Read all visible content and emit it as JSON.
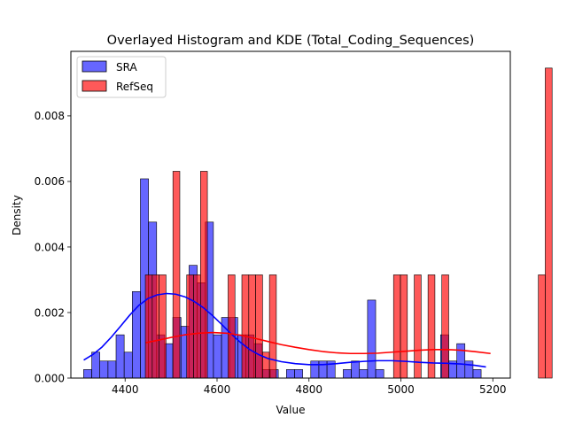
{
  "chart_data": {
    "type": "bar",
    "title": "Overlayed Histogram and KDE (Total_Coding_Sequences)",
    "xlabel": "Value",
    "ylabel": "Density",
    "xlim": [
      4282,
      5238
    ],
    "ylim": [
      0,
      0.00997
    ],
    "xticks": [
      4400,
      4600,
      4800,
      5000,
      5200
    ],
    "xtick_labels": [
      "4400",
      "4600",
      "4800",
      "5000",
      "5200"
    ],
    "yticks": [
      0,
      0.002,
      0.004,
      0.006,
      0.008
    ],
    "ytick_labels": [
      "0.000",
      "0.002",
      "0.004",
      "0.006",
      "0.008"
    ],
    "legend_position": "upper-left",
    "grid": false,
    "series": [
      {
        "name": "SRA",
        "color": "#0000ff",
        "opacity": 0.6,
        "bin_width": 17.65,
        "bin_start": 4309.7,
        "values": [
          0.00026,
          0.00079,
          0.00052,
          0.00052,
          0.00132,
          0.00079,
          0.00264,
          0.00608,
          0.00476,
          0.00132,
          0.00105,
          0.00185,
          0.00158,
          0.00344,
          0.00291,
          0.00476,
          0.00132,
          0.00185,
          0.00185,
          0.00132,
          0.00132,
          0.00105,
          0.00026,
          0.00026,
          0,
          0.00026,
          0.00026,
          0,
          0.00052,
          0.00052,
          0.00052,
          0,
          0.00026,
          0.00052,
          0.00026,
          0.00238,
          0.00026,
          0,
          0,
          0,
          0,
          0,
          0,
          0,
          0.00132,
          0.00052,
          0.00105,
          0.00052,
          0.00026
        ]
      },
      {
        "name": "RefSeq",
        "color": "#ff0000",
        "opacity": 0.65,
        "bin_width": 15.0,
        "bin_start": 4444.0,
        "values": [
          0.00315,
          0.00315,
          0.00315,
          0,
          0.00631,
          0,
          0.00315,
          0.00315,
          0.00631,
          0,
          0,
          0,
          0.00315,
          0,
          0.00315,
          0.00315,
          0.00315,
          0.00079,
          0.00315,
          0,
          0,
          0,
          0,
          0,
          0,
          0,
          0,
          0,
          0,
          0,
          0,
          0,
          0,
          0,
          0,
          0,
          0.00315,
          0.00315,
          0,
          0.00315,
          0,
          0.00315,
          0,
          0.00315,
          0,
          0,
          0,
          0,
          0,
          0,
          0,
          0,
          0,
          0,
          0,
          0,
          0,
          0.00315,
          0.00946
        ]
      }
    ],
    "kde": [
      {
        "name": "SRA",
        "color": "#0000ff",
        "x": [
          4310,
          4330,
          4350,
          4370,
          4390,
          4410,
          4430,
          4450,
          4470,
          4490,
          4510,
          4530,
          4550,
          4570,
          4590,
          4610,
          4630,
          4650,
          4670,
          4690,
          4710,
          4740,
          4770,
          4800,
          4830,
          4860,
          4890,
          4920,
          4950,
          4980,
          5010,
          5040,
          5070,
          5100,
          5130,
          5160,
          5185
        ],
        "y": [
          0.00055,
          0.00072,
          0.00095,
          0.00125,
          0.00158,
          0.00192,
          0.00222,
          0.00243,
          0.00254,
          0.00258,
          0.00256,
          0.00248,
          0.00234,
          0.00215,
          0.00191,
          0.00164,
          0.00136,
          0.0011,
          0.00088,
          0.00072,
          0.0006,
          0.0005,
          0.00044,
          0.00041,
          0.00041,
          0.00044,
          0.00048,
          0.00051,
          0.00053,
          0.00053,
          0.00051,
          0.00048,
          0.00046,
          0.00045,
          0.00043,
          0.00039,
          0.00034
        ]
      },
      {
        "name": "RefSeq",
        "color": "#ff0000",
        "x": [
          4445,
          4470,
          4500,
          4530,
          4560,
          4590,
          4620,
          4650,
          4680,
          4710,
          4740,
          4770,
          4800,
          4830,
          4860,
          4890,
          4920,
          4950,
          4980,
          5010,
          5040,
          5070,
          5100,
          5130,
          5160,
          5195
        ],
        "y": [
          0.00108,
          0.00115,
          0.00124,
          0.00132,
          0.00137,
          0.00139,
          0.00137,
          0.00131,
          0.00122,
          0.00112,
          0.00102,
          0.00094,
          0.00087,
          0.00081,
          0.00077,
          0.00075,
          0.00075,
          0.00076,
          0.00079,
          0.00082,
          0.00085,
          0.00087,
          0.00087,
          0.00085,
          0.00081,
          0.00075
        ]
      }
    ]
  }
}
